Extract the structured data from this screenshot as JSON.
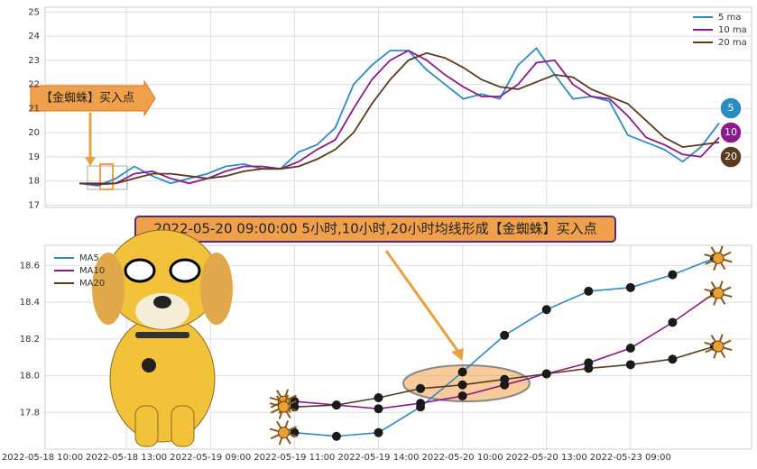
{
  "chart_data": [
    {
      "type": "line",
      "annotation": "【金蜘蛛】买入点",
      "end_labels": [
        "5",
        "10",
        "20"
      ],
      "ylim": [
        16.9,
        25.2
      ],
      "yticks": [
        17,
        18,
        19,
        20,
        21,
        22,
        23,
        24,
        25
      ],
      "grid": true,
      "legend": "upper right",
      "series": [
        {
          "name": "5 ma",
          "color": "#2b8cc4",
          "values": [
            17.9,
            17.8,
            18.1,
            18.6,
            18.2,
            17.9,
            18.1,
            18.3,
            18.6,
            18.7,
            18.5,
            18.5,
            19.2,
            19.5,
            20.2,
            22.0,
            22.8,
            23.4,
            23.4,
            22.6,
            22.0,
            21.4,
            21.6,
            21.4,
            22.8,
            23.5,
            22.4,
            21.4,
            21.5,
            21.3,
            19.9,
            19.6,
            19.3,
            18.8,
            19.4,
            20.4
          ]
        },
        {
          "name": "10 ma",
          "color": "#8b1a8b",
          "values": [
            17.9,
            17.85,
            17.9,
            18.3,
            18.4,
            18.1,
            17.9,
            18.1,
            18.4,
            18.6,
            18.6,
            18.5,
            18.8,
            19.3,
            19.7,
            21.0,
            22.2,
            23.0,
            23.4,
            23.0,
            22.4,
            21.9,
            21.5,
            21.5,
            22.0,
            22.9,
            23.0,
            22.0,
            21.5,
            21.4,
            20.7,
            19.8,
            19.5,
            19.1,
            19.0,
            19.8
          ]
        },
        {
          "name": "20 ma",
          "color": "#5b3a1e",
          "values": [
            17.9,
            17.9,
            17.9,
            18.1,
            18.3,
            18.3,
            18.2,
            18.1,
            18.2,
            18.4,
            18.5,
            18.5,
            18.6,
            18.9,
            19.3,
            20.0,
            21.2,
            22.2,
            23.0,
            23.3,
            23.1,
            22.7,
            22.2,
            21.9,
            21.8,
            22.1,
            22.4,
            22.3,
            21.8,
            21.5,
            21.2,
            20.5,
            19.8,
            19.4,
            19.5,
            19.6
          ]
        }
      ]
    },
    {
      "type": "line",
      "title": "2022-05-20 09:00:00 5小时,10小时,20小时均线形成【金蜘蛛】买入点",
      "categories": [
        "2022-05-18 10:00",
        null,
        "2022-05-18 13:00",
        null,
        "2022-05-19 09:00",
        null,
        "2022-05-19 11:00",
        null,
        "2022-05-19 14:00",
        null,
        "2022-05-20 10:00",
        null,
        "2022-05-20 13:00",
        null,
        "2022-05-23 09:00",
        null,
        null
      ],
      "ylim": [
        17.6,
        18.71
      ],
      "yticks": [
        {
          "value": 17.8,
          "label": "17.8"
        },
        {
          "value": 18,
          "label": "18.0"
        },
        {
          "value": 18.2,
          "label": "18.2"
        },
        {
          "value": 18.4,
          "label": "18.4"
        },
        {
          "value": 18.6,
          "label": "18.6"
        }
      ],
      "grid": true,
      "legend": "upper left",
      "series": [
        {
          "name": "MA5",
          "color": "#2b8cc4",
          "values": [
            null,
            null,
            null,
            null,
            null,
            null,
            17.69,
            17.67,
            17.69,
            17.83,
            18.02,
            18.22,
            18.36,
            18.46,
            18.48,
            18.55,
            18.64
          ]
        },
        {
          "name": "MA10",
          "color": "#8b1a8b",
          "values": [
            null,
            null,
            null,
            null,
            null,
            null,
            17.86,
            17.84,
            17.82,
            17.85,
            17.89,
            17.95,
            18.01,
            18.07,
            18.15,
            18.29,
            18.45
          ]
        },
        {
          "name": "MA20",
          "color": "#5b3a1e",
          "values": [
            null,
            null,
            null,
            null,
            null,
            null,
            17.83,
            17.84,
            17.88,
            17.93,
            17.95,
            17.98,
            18.01,
            18.04,
            18.06,
            18.09,
            18.16
          ]
        }
      ]
    }
  ]
}
